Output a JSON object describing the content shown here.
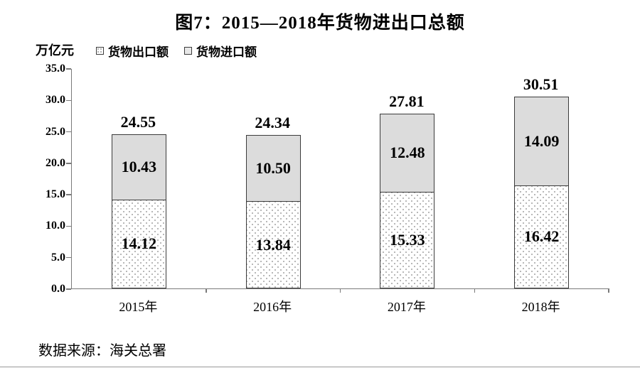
{
  "title": "图7：2015—2018年货物进出口总额",
  "unit_label": "万亿元",
  "legend": {
    "items": [
      {
        "label": "货物出口额",
        "swatch": "dotted"
      },
      {
        "label": "货物进口额",
        "swatch": "gray"
      }
    ]
  },
  "source": "数据来源：海关总署",
  "colors": {
    "import_fill": "#dcdcdc",
    "export_fill": "#ffffff",
    "export_dot": "#a0a0a0",
    "bar_border": "#3b3b3b",
    "axis": "#7a7a7a",
    "text": "#000000"
  },
  "chart_data": {
    "type": "bar",
    "stacked": true,
    "title": "图7：2015—2018年货物进出口总额",
    "ylabel": "万亿元",
    "categories": [
      "2015年",
      "2016年",
      "2017年",
      "2018年"
    ],
    "series": [
      {
        "name": "货物出口额",
        "values": [
          14.12,
          13.84,
          15.33,
          16.42
        ]
      },
      {
        "name": "货物进口额",
        "values": [
          10.43,
          10.5,
          12.48,
          14.09
        ]
      }
    ],
    "totals": [
      24.55,
      24.34,
      27.81,
      30.51
    ],
    "ylim": [
      0,
      35
    ],
    "ytick_step": 5,
    "yticks": [
      "0.0",
      "5.0",
      "10.0",
      "15.0",
      "20.0",
      "25.0",
      "30.0",
      "35.0"
    ],
    "grid": false,
    "legend_position": "top-left"
  }
}
